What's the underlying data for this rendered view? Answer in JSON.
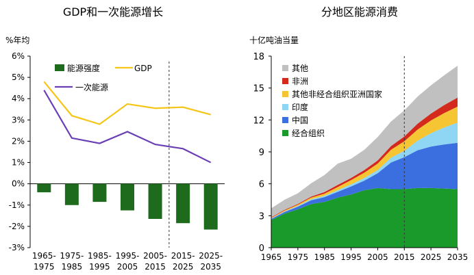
{
  "chart_data": [
    {
      "type": "bar",
      "title": "GDP和一次能源增长",
      "ylabel": "%年均",
      "ylim": [
        -3,
        6
      ],
      "y_ticks": [
        "-3%",
        "-2%",
        "-1%",
        "0%",
        "1%",
        "2%",
        "3%",
        "4%",
        "5%",
        "6%"
      ],
      "categories": [
        [
          "1965-",
          "1975"
        ],
        [
          "1975-",
          "1985"
        ],
        [
          "1985-",
          "1995"
        ],
        [
          "1995-",
          "2005"
        ],
        [
          "2005-",
          "2015"
        ],
        [
          "2015-",
          "2025"
        ],
        [
          "2025-",
          "2035"
        ]
      ],
      "series": [
        {
          "name": "能源强度",
          "type": "bar",
          "color": "#1e6b1e",
          "values": [
            -0.4,
            -1.0,
            -0.85,
            -1.25,
            -1.65,
            -1.85,
            -2.15
          ]
        },
        {
          "name": "GDP",
          "type": "line",
          "color": "#f5c518",
          "values": [
            4.8,
            3.2,
            2.8,
            3.75,
            3.55,
            3.6,
            3.25
          ]
        },
        {
          "name": "一次能源",
          "type": "line",
          "color": "#6a3fb5",
          "values": [
            4.4,
            2.15,
            1.9,
            2.45,
            1.85,
            1.65,
            1.0
          ]
        }
      ],
      "legend_position": "top-right",
      "projection_divider_after_category": 4
    },
    {
      "type": "area",
      "stacked": true,
      "title": "分地区能源消费",
      "ylabel": "十亿吨油当量",
      "ylim": [
        0,
        18
      ],
      "y_ticks": [
        "0",
        "3",
        "6",
        "9",
        "12",
        "15",
        "18"
      ],
      "x": [
        1965,
        1970,
        1975,
        1980,
        1985,
        1990,
        1995,
        2000,
        2005,
        2010,
        2015,
        2020,
        2025,
        2030,
        2035
      ],
      "x_ticks": [
        "1965",
        "1975",
        "1985",
        "1995",
        "2005",
        "2015",
        "2025",
        "2035"
      ],
      "projection_start": 2015,
      "legend_position": "top-left",
      "series": [
        {
          "name": "经合组织",
          "color": "#1a9a2a",
          "values": [
            2.6,
            3.2,
            3.6,
            4.1,
            4.3,
            4.7,
            5.0,
            5.4,
            5.6,
            5.5,
            5.5,
            5.6,
            5.6,
            5.55,
            5.5
          ]
        },
        {
          "name": "中国",
          "color": "#3b6fe0",
          "values": [
            0.1,
            0.15,
            0.25,
            0.35,
            0.45,
            0.55,
            0.75,
            0.9,
            1.4,
            2.5,
            3.0,
            3.55,
            3.9,
            4.15,
            4.35
          ]
        },
        {
          "name": "印度",
          "color": "#8fd6f5",
          "values": [
            0.05,
            0.06,
            0.08,
            0.1,
            0.12,
            0.15,
            0.2,
            0.25,
            0.3,
            0.45,
            0.6,
            0.9,
            1.25,
            1.6,
            1.9
          ]
        },
        {
          "name": "其他非经合组织亚洲国家",
          "color": "#f5c533",
          "values": [
            0.05,
            0.08,
            0.1,
            0.15,
            0.2,
            0.3,
            0.4,
            0.5,
            0.6,
            0.75,
            0.9,
            1.05,
            1.2,
            1.35,
            1.5
          ]
        },
        {
          "name": "非洲",
          "color": "#d42a1e",
          "values": [
            0.05,
            0.06,
            0.08,
            0.1,
            0.15,
            0.2,
            0.2,
            0.25,
            0.3,
            0.35,
            0.45,
            0.55,
            0.65,
            0.75,
            0.85
          ]
        },
        {
          "name": "其他",
          "color": "#c0c0c0",
          "values": [
            0.85,
            0.95,
            1.0,
            1.25,
            1.6,
            2.0,
            1.8,
            1.9,
            2.2,
            2.3,
            2.45,
            2.55,
            2.65,
            2.8,
            3.0
          ]
        }
      ]
    }
  ]
}
